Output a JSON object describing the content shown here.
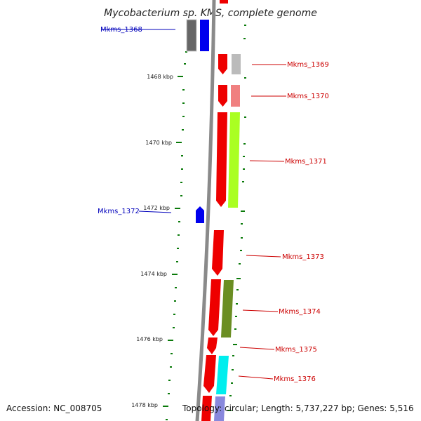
{
  "title": "Mycobacterium sp. KMS, complete genome",
  "footer": {
    "accession": "Accession: NC_008705",
    "topology": "Topology: circular; Length: 5,737,227 bp; Genes: 5,516"
  },
  "colors": {
    "backbone": "#888888",
    "tick": "#0a7a0a",
    "label_forward": "#cc0000",
    "label_reverse": "#0000bb"
  },
  "ticks": [
    {
      "kbp": 1468,
      "label": "1468 kbp"
    },
    {
      "kbp": 1470,
      "label": "1470 kbp"
    },
    {
      "kbp": 1472,
      "label": "1472 kbp"
    },
    {
      "kbp": 1474,
      "label": "1474 kbp"
    },
    {
      "kbp": 1476,
      "label": "1476 kbp"
    },
    {
      "kbp": 1478,
      "label": "1478 kbp"
    }
  ],
  "genes": [
    {
      "name": "Mkms_1368",
      "strand": "reverse",
      "color": "#0000ee",
      "cog_color": "#666666"
    },
    {
      "name": "Mkms_1369",
      "strand": "forward",
      "color": "#ee0000",
      "cog_color": "#bbbbbb"
    },
    {
      "name": "Mkms_1370",
      "strand": "forward",
      "color": "#ee0000",
      "cog_color": "#f08080"
    },
    {
      "name": "Mkms_1371",
      "strand": "forward",
      "color": "#ee0000",
      "cog_color": "#aaff22"
    },
    {
      "name": "Mkms_1372",
      "strand": "reverse",
      "color": "#0000ee",
      "cog_color": ""
    },
    {
      "name": "Mkms_1373",
      "strand": "forward",
      "color": "#ee0000",
      "cog_color": ""
    },
    {
      "name": "Mkms_1374",
      "strand": "forward",
      "color": "#ee0000",
      "cog_color": "#6b8e23"
    },
    {
      "name": "Mkms_1375",
      "strand": "forward",
      "color": "#ee0000",
      "cog_color": ""
    },
    {
      "name": "Mkms_1376",
      "strand": "forward",
      "color": "#ee0000",
      "cog_color": "#00eeee"
    }
  ]
}
